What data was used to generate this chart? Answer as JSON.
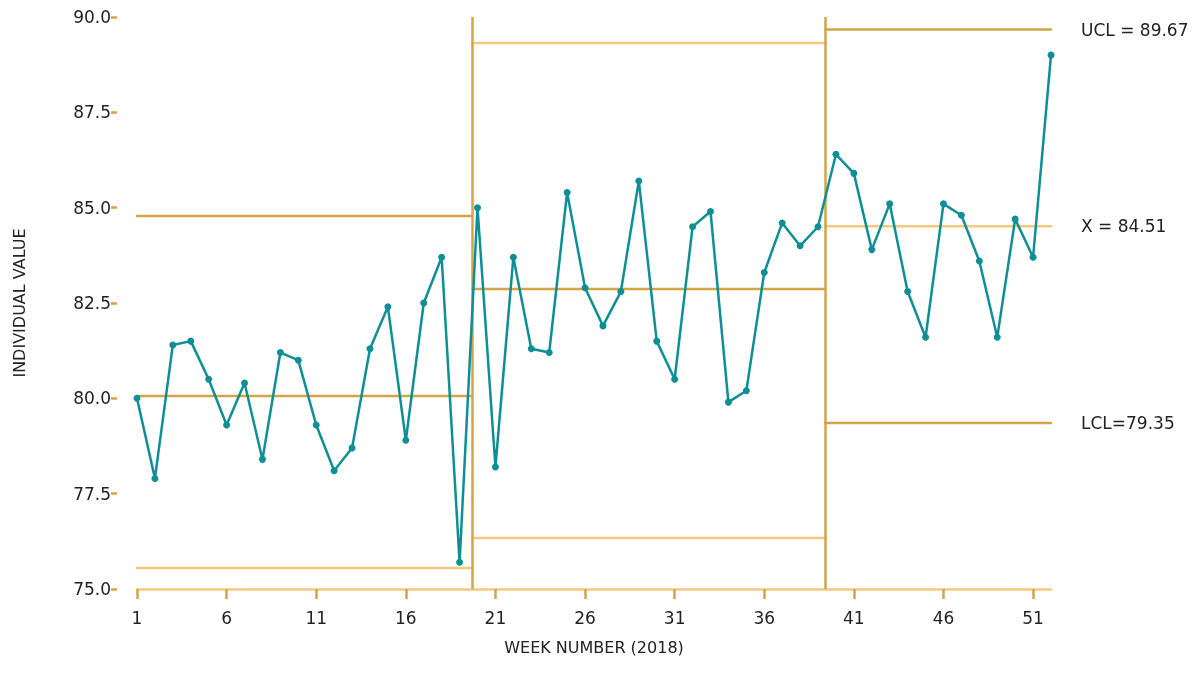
{
  "chart_data": {
    "type": "line",
    "xlabel": "WEEK NUMBER (2018)",
    "ylabel": "INDIVIDUAL VALUE",
    "x": [
      1,
      2,
      3,
      4,
      5,
      6,
      7,
      8,
      9,
      10,
      11,
      12,
      13,
      14,
      15,
      16,
      17,
      18,
      19,
      20,
      21,
      22,
      23,
      24,
      25,
      26,
      27,
      28,
      29,
      30,
      31,
      32,
      33,
      34,
      35,
      36,
      37,
      38,
      39,
      40,
      41,
      42,
      43,
      44,
      45,
      46,
      47,
      48,
      49,
      50,
      51,
      52
    ],
    "series": [
      {
        "color": "#d4a544",
        "marker": "none",
        "x": [
          1,
          19.7
        ],
        "values": [
          84.78,
          84.78
        ]
      },
      {
        "color": "#d4a544",
        "marker": "none",
        "x": [
          1,
          19.7
        ],
        "values": [
          80.06,
          80.06
        ]
      },
      {
        "color": "#f2c97e",
        "marker": "none",
        "x": [
          1,
          19.7
        ],
        "values": [
          75.55,
          75.55
        ]
      },
      {
        "color": "#f2c97e",
        "marker": "none",
        "x": [
          19.7,
          39.4
        ],
        "values": [
          89.32,
          89.32
        ]
      },
      {
        "color": "#d4a544",
        "marker": "none",
        "x": [
          19.7,
          39.4
        ],
        "values": [
          82.87,
          82.87
        ]
      },
      {
        "color": "#f2c97e",
        "marker": "none",
        "x": [
          19.7,
          39.4
        ],
        "values": [
          76.34,
          76.34
        ]
      },
      {
        "name": "UCL = 89.67",
        "color": "#d4a544",
        "marker": "none",
        "x": [
          39.4,
          52
        ],
        "values": [
          89.67,
          89.67
        ]
      },
      {
        "name": "X = 84.51",
        "color": "#f2c97e",
        "marker": "none",
        "x": [
          39.4,
          52
        ],
        "values": [
          84.51,
          84.51
        ]
      },
      {
        "name": "LCL=79.35",
        "color": "#d4a544",
        "marker": "none",
        "x": [
          39.4,
          52
        ],
        "values": [
          79.35,
          79.35
        ]
      },
      {
        "color": "#0e8f96",
        "values": [
          80.0,
          77.9,
          81.4,
          81.5,
          80.5,
          79.3,
          80.4,
          78.4,
          81.2,
          81.0,
          79.3,
          78.1,
          78.7,
          81.3,
          82.4,
          78.9,
          82.5,
          83.7,
          75.7,
          85.0,
          78.2,
          83.7,
          81.3,
          81.2,
          85.4,
          82.9,
          81.9,
          82.8,
          85.7,
          81.5,
          80.5,
          84.5,
          84.9,
          79.9,
          80.2,
          83.3,
          84.6,
          84.0,
          84.5,
          86.4,
          85.9,
          83.9,
          85.1,
          82.8,
          81.6,
          85.1,
          84.8,
          83.6,
          81.6,
          84.7,
          83.7,
          89.0
        ]
      }
    ],
    "ref_lines": [
      {
        "axis": "x",
        "value": 19.7,
        "color": "#d4a544"
      },
      {
        "axis": "x",
        "value": 39.4,
        "color": "#d4a544"
      }
    ],
    "xlim": [
      1,
      52
    ],
    "xticks": [
      1,
      6,
      11,
      16,
      21,
      26,
      31,
      36,
      41,
      46,
      51
    ],
    "ylim": [
      75,
      90
    ],
    "yticks": [
      {
        "value": 75,
        "label": "75.0"
      },
      {
        "value": 77.5,
        "label": "77.5"
      },
      {
        "value": 80,
        "label": "80.0"
      },
      {
        "value": 82.5,
        "label": "82.5"
      },
      {
        "value": 85,
        "label": "85.0"
      },
      {
        "value": 87.5,
        "label": "87.5"
      },
      {
        "value": 90,
        "label": "90.0"
      }
    ],
    "grid": false,
    "legend": false,
    "marker": "circle",
    "line_style": "solid"
  }
}
